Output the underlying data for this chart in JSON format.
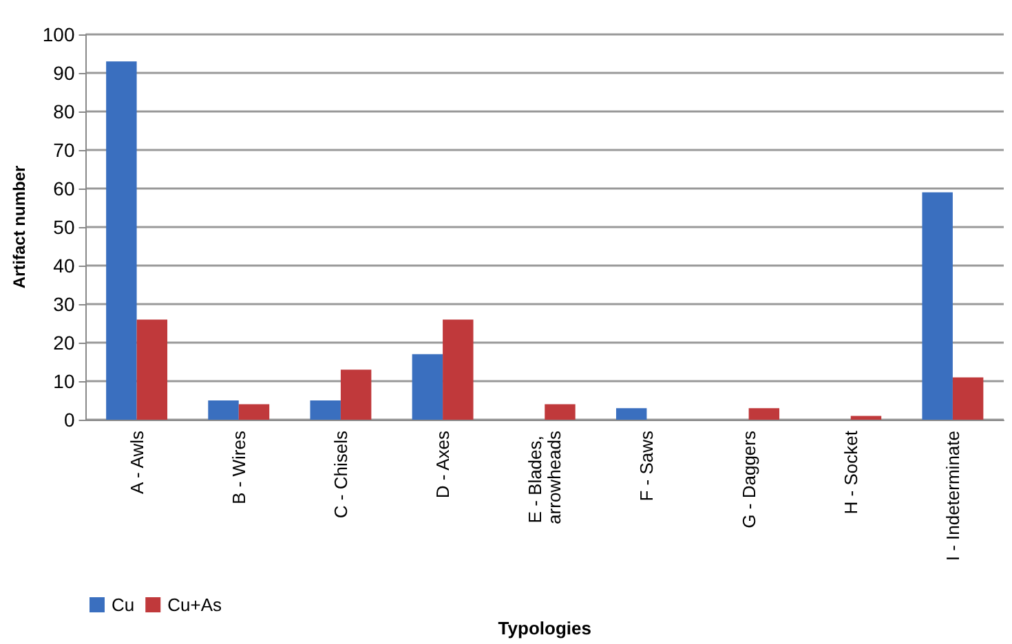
{
  "chart_data": {
    "type": "bar",
    "xlabel": "Typologies",
    "ylabel": "Artifact number",
    "categories": [
      "A - Awls",
      "B - Wires",
      "C - Chisels",
      "D - Axes",
      "E - Blades, arrowheads",
      "F - Saws",
      "G - Daggers",
      "H - Socket",
      "I - Indeterminate"
    ],
    "series": [
      {
        "name": "Cu",
        "color": "#3a6fbf",
        "values": [
          93,
          5,
          5,
          17,
          0,
          3,
          0,
          0,
          59
        ]
      },
      {
        "name": "Cu+As",
        "color": "#c0393b",
        "values": [
          26,
          4,
          13,
          26,
          4,
          0,
          3,
          1,
          11
        ]
      }
    ],
    "ylim": [
      0,
      100
    ],
    "yticks": [
      0,
      10,
      20,
      30,
      40,
      50,
      60,
      70,
      80,
      90,
      100
    ],
    "grid": "y",
    "legend": "bottom left"
  }
}
